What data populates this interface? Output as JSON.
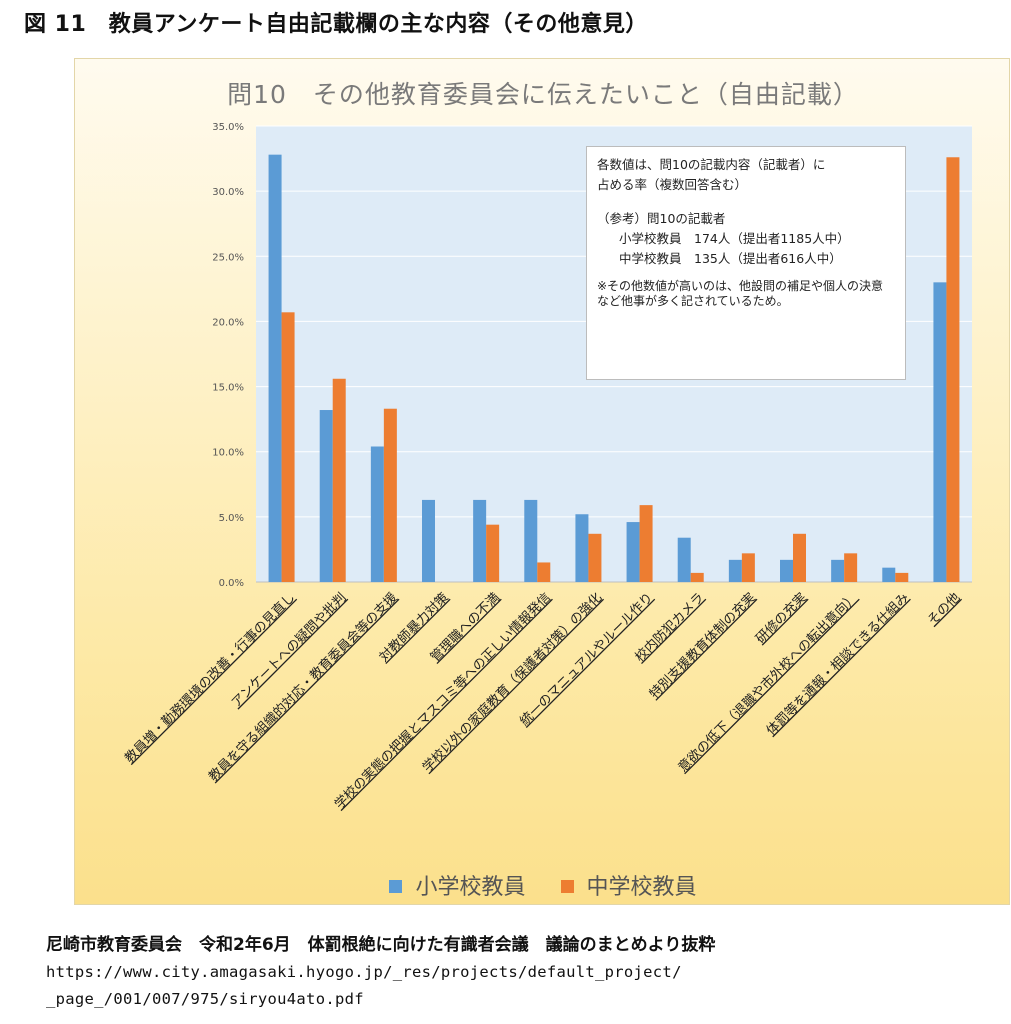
{
  "figure_title": "図 11　教員アンケート自由記載欄の主な内容（その他意見）",
  "chart_data": {
    "type": "bar",
    "title": "問10　その他教育委員会に伝えたいこと（自由記載）",
    "categories": [
      "教員増・勤務環境の改善・行事の見直し",
      "アンケートへの疑問や批判",
      "教員を守る組織的対応・教育委員会等の支援",
      "対教師暴力対策",
      "管理職への不満",
      "学校の実態の把握とマスコミ等への正しい情報発信",
      "学校以外の家庭教育（保護者対策）の強化",
      "統一のマニュアルやルール作り",
      "校内防犯カメラ",
      "特別支援教育体制の充実",
      "研修の充実",
      "意欲の低下（退職や市外校への転出意向）",
      "体罰等を通報・相談できる仕組み",
      "その他"
    ],
    "series": [
      {
        "name": "小学校教員",
        "color": "#5b9bd5",
        "values": [
          32.8,
          13.2,
          10.4,
          6.3,
          6.3,
          6.3,
          5.2,
          4.6,
          3.4,
          1.7,
          1.7,
          1.7,
          1.1,
          23.0
        ]
      },
      {
        "name": "中学校教員",
        "color": "#ed7d31",
        "values": [
          20.7,
          15.6,
          13.3,
          0.0,
          4.4,
          1.5,
          3.7,
          5.9,
          0.7,
          2.2,
          3.7,
          2.2,
          0.7,
          32.6
        ]
      }
    ],
    "ylim": [
      0,
      35
    ],
    "yticks": [
      "0.0%",
      "5.0%",
      "10.0%",
      "15.0%",
      "20.0%",
      "25.0%",
      "30.0%",
      "35.0%"
    ],
    "grid": true,
    "plot_background": "#deebf7",
    "legend_position": "bottom"
  },
  "note": {
    "line1": "各数値は、問10の記載内容（記載者）に",
    "line2": "占める率（複数回答含む）",
    "line3": "（参考）問10の記載者",
    "line4": "小学校教員　174人（提出者1185人中）",
    "line5": "中学校教員　135人（提出者616人中）",
    "line6": "※その他数値が高いのは、他設問の補足や個人の決意など他事が多く記されているため。"
  },
  "source": {
    "org": "尼崎市教育委員会　令和2年6月　体罰根絶に向けた有識者会議　議論のまとめより抜粋",
    "url1": "https://www.city.amagasaki.hyogo.jp/_res/projects/default_project/",
    "url2": "_page_/001/007/975/siryou4ato.pdf"
  }
}
